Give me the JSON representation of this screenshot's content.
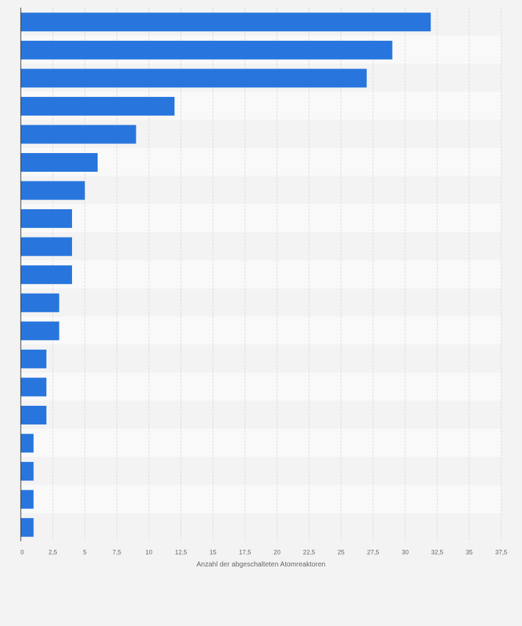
{
  "chart_data": {
    "type": "bar",
    "orientation": "horizontal",
    "title": "",
    "xlabel": "Anzahl der abgeschalteten Atomreaktoren",
    "ylabel": "",
    "xlim": [
      0,
      37.5
    ],
    "ticks": [
      "0",
      "2,5",
      "5",
      "7,5",
      "10",
      "12,5",
      "15",
      "17,5",
      "20",
      "22,5",
      "25",
      "27,5",
      "30",
      "32,5",
      "35",
      "37,5"
    ],
    "tick_values": [
      0,
      2.5,
      5,
      7.5,
      10,
      12.5,
      15,
      17.5,
      20,
      22.5,
      25,
      27.5,
      30,
      32.5,
      35,
      37.5
    ],
    "values": [
      32,
      29,
      27,
      12,
      9,
      6,
      5,
      4,
      4,
      4,
      3,
      3,
      2,
      2,
      2,
      1,
      1,
      1,
      1
    ],
    "grid": true,
    "legend": "none",
    "colors": {
      "bar": "#2876dd",
      "stripe_light": "#f9f9f9",
      "stripe_dark": "#f3f3f3",
      "grid": "#d9d9d9",
      "axis": "#333333",
      "tick_text": "#666666",
      "label_text": "#666666"
    }
  }
}
